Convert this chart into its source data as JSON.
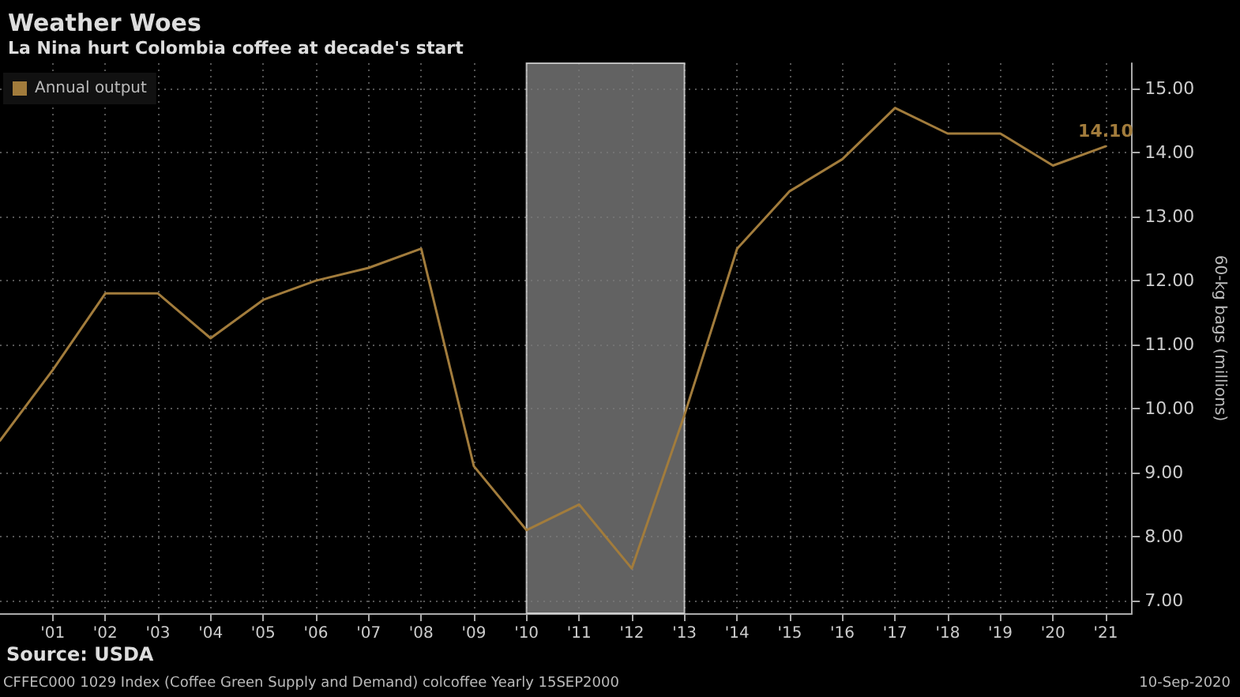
{
  "chart_data": {
    "type": "line",
    "title": "Weather Woes",
    "subtitle": "La Nina hurt Colombia coffee at decade's start",
    "y2label": "60-kg bags (millions)",
    "x": [
      2000,
      2001,
      2002,
      2003,
      2004,
      2005,
      2006,
      2007,
      2008,
      2009,
      2010,
      2011,
      2012,
      2013,
      2014,
      2015,
      2016,
      2017,
      2018,
      2019,
      2020,
      2021
    ],
    "series": [
      {
        "name": "Annual output",
        "color": "#a27c3c",
        "axis": "y2",
        "values": [
          9.5,
          10.6,
          11.8,
          11.8,
          11.1,
          11.7,
          12.0,
          12.2,
          12.5,
          9.1,
          8.1,
          8.5,
          7.5,
          9.9,
          12.5,
          13.4,
          13.9,
          14.7,
          14.3,
          14.3,
          13.8,
          14.1
        ],
        "value_labels": [
          null,
          null,
          null,
          null,
          null,
          null,
          null,
          null,
          null,
          null,
          null,
          null,
          null,
          null,
          null,
          null,
          null,
          null,
          null,
          null,
          null,
          "14.10"
        ]
      }
    ],
    "xlim": [
      2000,
      2021.5
    ],
    "xticks": [
      {
        "value": 2001,
        "label": "'01"
      },
      {
        "value": 2002,
        "label": "'02"
      },
      {
        "value": 2003,
        "label": "'03"
      },
      {
        "value": 2004,
        "label": "'04"
      },
      {
        "value": 2005,
        "label": "'05"
      },
      {
        "value": 2006,
        "label": "'06"
      },
      {
        "value": 2007,
        "label": "'07"
      },
      {
        "value": 2008,
        "label": "'08"
      },
      {
        "value": 2009,
        "label": "'09"
      },
      {
        "value": 2010,
        "label": "'10"
      },
      {
        "value": 2011,
        "label": "'11"
      },
      {
        "value": 2012,
        "label": "'12"
      },
      {
        "value": 2013,
        "label": "'13"
      },
      {
        "value": 2014,
        "label": "'14"
      },
      {
        "value": 2015,
        "label": "'15"
      },
      {
        "value": 2016,
        "label": "'16"
      },
      {
        "value": 2017,
        "label": "'17"
      },
      {
        "value": 2018,
        "label": "'18"
      },
      {
        "value": 2019,
        "label": "'19"
      },
      {
        "value": 2020,
        "label": "'20"
      },
      {
        "value": 2021,
        "label": "'21"
      }
    ],
    "y2lim": [
      6.8,
      15.4
    ],
    "y2ticks": [
      {
        "value": 7,
        "label": "7.00"
      },
      {
        "value": 8,
        "label": "8.00"
      },
      {
        "value": 9,
        "label": "9.00"
      },
      {
        "value": 10,
        "label": "10.00"
      },
      {
        "value": 11,
        "label": "11.00"
      },
      {
        "value": 12,
        "label": "12.00"
      },
      {
        "value": 13,
        "label": "13.00"
      },
      {
        "value": 14,
        "label": "14.00"
      },
      {
        "value": 15,
        "label": "15.00"
      }
    ],
    "bands": [
      {
        "axis": "x",
        "from": 2010,
        "to": 2013,
        "color": "#7a7a7a"
      }
    ],
    "grid": true,
    "legend": "top left",
    "marker": "none",
    "line_style": "solid",
    "annotations": [
      "Source: USDA",
      "CFFEC000 1029 Index (Coffee Green Supply and Demand) colcoffee Yearly 15SEP2000",
      "10-Sep-2020"
    ]
  }
}
